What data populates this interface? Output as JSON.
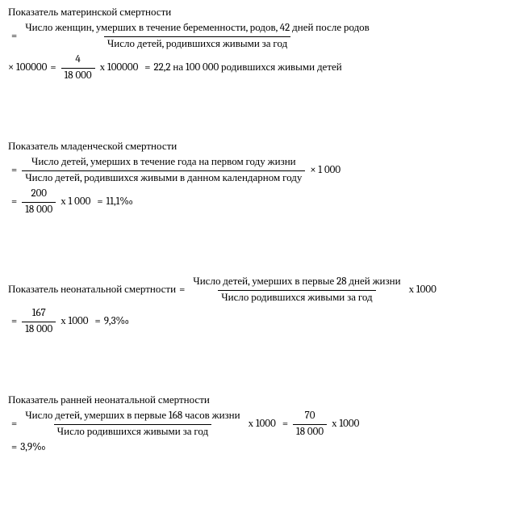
{
  "maternal": {
    "title": "Показатель материнской смертности",
    "frac_num": "Число женщин,  умерших в течение беременности, родов, 42 дней после родов",
    "frac_den": "Число детей, родившихся живыми за год",
    "mult1": "× 100000",
    "calc_num": "4",
    "calc_den": "18 000",
    "mult2": "х 100000",
    "result": "22,2 на 100 000 родившихся живыми детей"
  },
  "infant": {
    "title": "Показатель младенческой смертности",
    "frac_num": "Число детей, умерших в течение года на первом году жизни",
    "frac_den": "Число детей, родившихся живыми в данном календарном году",
    "mult1": "× 1 000",
    "calc_num": "200",
    "calc_den": "18 000",
    "mult2": "х 1 000",
    "result": "11,1‰"
  },
  "neonatal": {
    "title": "Показатель неонатальной смертности",
    "frac_num": "Число детей, умерших в первые 28 дней жизни",
    "frac_den": "Число родившихся живыми за год",
    "mult1": "х 1000",
    "calc_num": "167",
    "calc_den": "18 000",
    "mult2": "х 1000",
    "result": "9,3‰"
  },
  "early_neonatal": {
    "title": "Показатель ранней неонатальной смертности",
    "frac_num": "Число детей, умерших в первые 168 часов жизни",
    "frac_den": "Число родившихся живыми за год",
    "mult1": "х 1000",
    "calc_num": "70",
    "calc_den": "18 000",
    "mult2": "х 1000",
    "result": "3,9‰"
  },
  "sym": {
    "eq": "="
  }
}
